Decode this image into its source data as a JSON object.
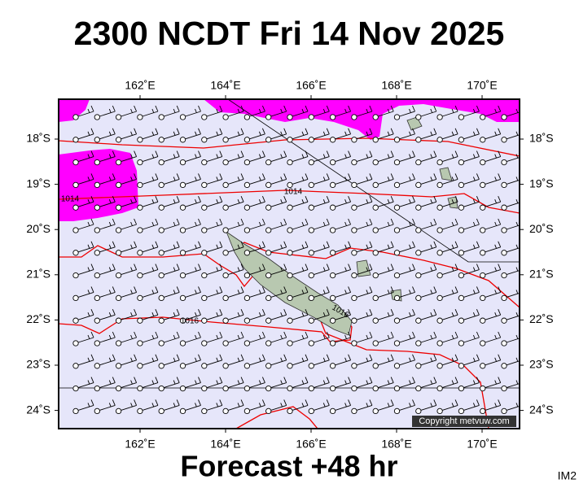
{
  "title": "2300 NCDT Fri 14 Nov 2025",
  "footer": "Forecast +48 hr",
  "image_id": "IM2",
  "copyright": "Copyright metvuw.com",
  "map": {
    "lon_ticks": [
      {
        "value": 162,
        "label": "162˚E"
      },
      {
        "value": 164,
        "label": "164˚E"
      },
      {
        "value": 166,
        "label": "166˚E"
      },
      {
        "value": 168,
        "label": "168˚E"
      },
      {
        "value": 170,
        "label": "170˚E"
      }
    ],
    "lat_ticks": [
      {
        "value": 18,
        "label": "18˚S"
      },
      {
        "value": 19,
        "label": "19˚S"
      },
      {
        "value": 20,
        "label": "20˚S"
      },
      {
        "value": 21,
        "label": "21˚S"
      },
      {
        "value": 22,
        "label": "22˚S"
      },
      {
        "value": 23,
        "label": "23˚S"
      },
      {
        "value": 24,
        "label": "24˚S"
      }
    ],
    "isobar_labels": [
      "1014",
      "1014",
      "1016",
      "1016"
    ]
  }
}
